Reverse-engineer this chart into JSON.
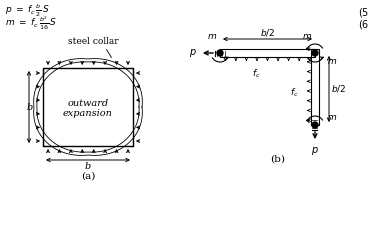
{
  "bg_color": "#ffffff",
  "line_color": "#000000",
  "fig_width": 3.92,
  "fig_height": 2.5,
  "dpi": 100,
  "label_a": "(a)",
  "label_b": "(b)",
  "steel_collar_label": "steel collar",
  "outward_expansion_label": "outward\nexpansion",
  "eq_num1": "(5",
  "eq_num2": "(6"
}
